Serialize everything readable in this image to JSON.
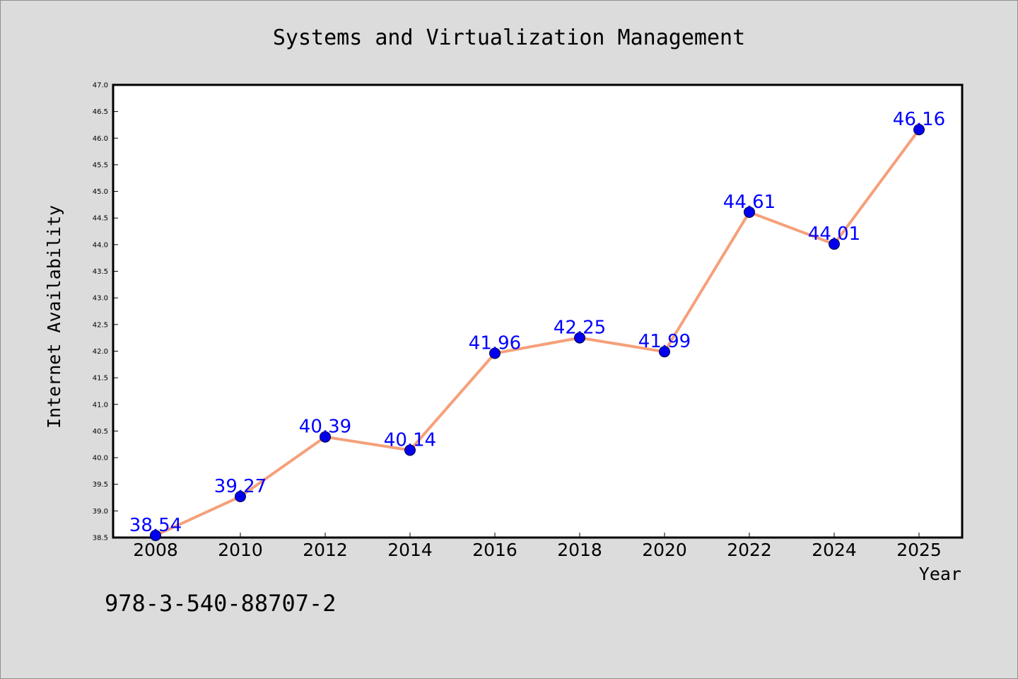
{
  "chart_data": {
    "type": "line",
    "title": "Systems and Virtualization Management",
    "xlabel": "Year",
    "ylabel": "Internet Availability",
    "categories": [
      "2008",
      "2010",
      "2012",
      "2014",
      "2016",
      "2018",
      "2020",
      "2022",
      "2024",
      "2025"
    ],
    "series": [
      {
        "values": [
          38.54,
          39.27,
          40.39,
          40.14,
          41.96,
          42.25,
          41.99,
          44.61,
          44.01,
          46.16
        ],
        "data_labels": [
          "38.54",
          "39.27",
          "40.39",
          "40.14",
          "41.96",
          "42.25",
          "41.99",
          "44.61",
          "44.01",
          "46.16"
        ]
      }
    ],
    "ylim": [
      38.5,
      47.0
    ],
    "yticks": [
      "38.5",
      "39.0",
      "39.5",
      "40.0",
      "40.5",
      "41.0",
      "41.5",
      "42.0",
      "42.5",
      "43.0",
      "43.5",
      "44.0",
      "44.5",
      "45.0",
      "45.5",
      "46.0",
      "46.5",
      "47.0"
    ],
    "grid": false,
    "legend": "none",
    "colors": {
      "line": "#f5a07a",
      "marker": "#0000ee",
      "data_label": "#0000ff",
      "background": "#dcdcdc",
      "plot_background": "#ffffff"
    }
  },
  "annotation": {
    "isbn": "978-3-540-88707-2"
  }
}
